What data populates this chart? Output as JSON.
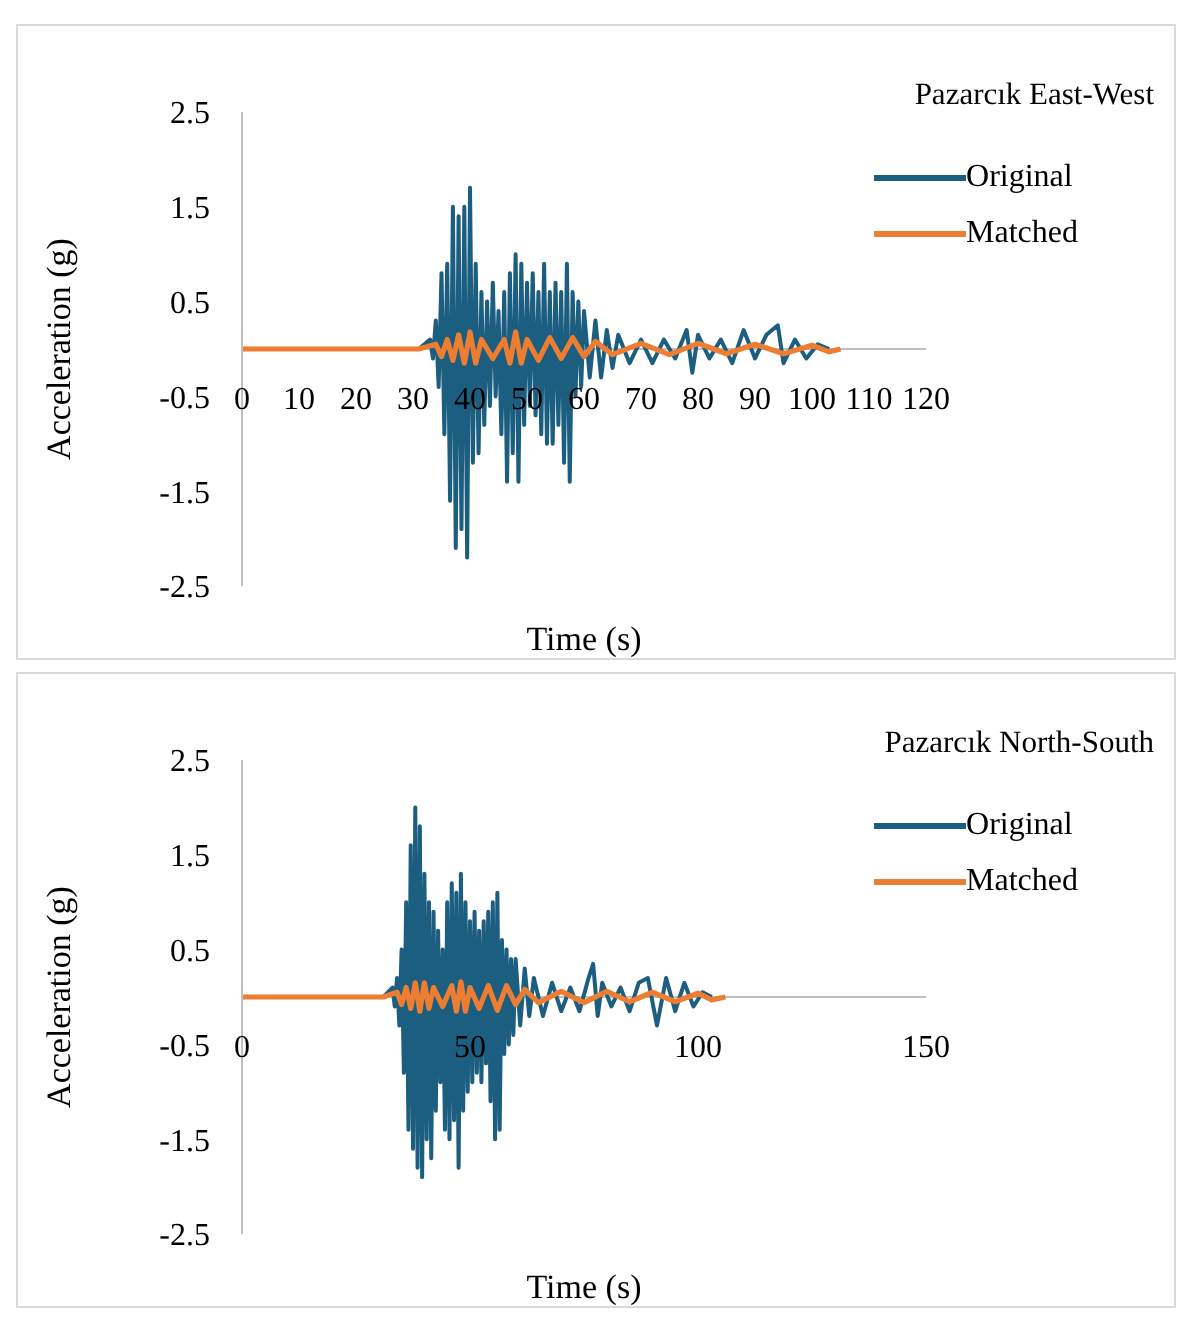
{
  "chart_data": [
    {
      "type": "line",
      "title": "Pazarcık East-West",
      "xlabel": "Time (s)",
      "ylabel": "Acceleration (g)",
      "xlim": [
        0,
        120
      ],
      "xticks": [
        0,
        10,
        20,
        30,
        40,
        50,
        60,
        70,
        80,
        90,
        100,
        110,
        120
      ],
      "ylim": [
        -2.5,
        2.5
      ],
      "yticks": [
        -2.5,
        -1.5,
        -0.5,
        0.5,
        1.5,
        2.5
      ],
      "legend": "top right",
      "marker": "none",
      "series": [
        {
          "name": "Original",
          "color": "#1b5e80",
          "x": [
            0,
            31,
            33,
            33.5,
            34,
            34.5,
            35,
            35.5,
            36,
            36.5,
            37,
            37.5,
            38,
            38.5,
            39,
            39.5,
            40,
            40.5,
            41,
            41.5,
            42,
            42.5,
            43,
            43.5,
            44,
            44.5,
            45,
            45.5,
            46,
            46.5,
            47,
            47.5,
            48,
            48.5,
            49,
            49.5,
            50,
            50.5,
            51,
            51.5,
            52,
            52.5,
            53,
            53.5,
            54,
            54.5,
            55,
            55.5,
            56,
            56.5,
            57,
            57.5,
            58,
            58.5,
            59,
            59.5,
            60,
            61,
            62,
            63,
            64,
            65,
            66,
            68,
            70,
            72,
            74,
            76,
            78,
            79,
            80,
            82,
            84,
            86,
            88,
            90,
            92,
            94,
            95,
            97,
            99,
            101,
            103
          ],
          "values": [
            0,
            0,
            0.1,
            -0.1,
            0.3,
            -0.4,
            0.8,
            -0.9,
            0.9,
            -1.6,
            1.5,
            -2.1,
            1.4,
            -1.9,
            1.5,
            -2.2,
            1.7,
            -1.2,
            0.9,
            -1.1,
            0.6,
            -0.8,
            0.5,
            -0.6,
            0.7,
            -0.5,
            0.4,
            -0.9,
            0.6,
            -1.4,
            0.8,
            -1.1,
            1.0,
            -1.4,
            0.9,
            -0.8,
            0.7,
            -0.6,
            0.8,
            -0.7,
            0.6,
            -0.9,
            0.9,
            -1.0,
            0.6,
            -1.0,
            0.7,
            -0.8,
            0.6,
            -1.2,
            0.9,
            -1.4,
            0.6,
            -0.5,
            0.5,
            -0.4,
            0.4,
            -0.3,
            0.3,
            -0.3,
            0.2,
            -0.2,
            0.15,
            -0.15,
            0.1,
            -0.15,
            0.1,
            -0.1,
            0.2,
            -0.25,
            0.15,
            -0.1,
            0.1,
            -0.15,
            0.2,
            -0.1,
            0.15,
            0.25,
            -0.15,
            0.1,
            -0.1,
            0.05,
            0
          ]
        },
        {
          "name": "Matched",
          "color": "#ed7d31",
          "x": [
            0,
            31,
            34,
            35,
            36,
            37,
            38,
            39,
            40,
            41,
            42,
            44,
            46,
            47,
            48,
            49,
            50,
            52,
            54,
            56,
            58,
            60,
            62,
            65,
            70,
            75,
            80,
            85,
            90,
            95,
            100,
            103,
            105
          ],
          "values": [
            0,
            0,
            0.05,
            -0.08,
            0.1,
            -0.12,
            0.15,
            -0.15,
            0.18,
            -0.15,
            0.1,
            -0.1,
            0.1,
            -0.15,
            0.18,
            -0.15,
            0.1,
            -0.12,
            0.12,
            -0.1,
            0.12,
            -0.08,
            0.08,
            -0.06,
            0.06,
            -0.06,
            0.06,
            -0.05,
            0.05,
            -0.05,
            0.04,
            -0.03,
            0
          ]
        }
      ]
    },
    {
      "type": "line",
      "title": "Pazarcık North-South",
      "xlabel": "Time (s)",
      "ylabel": "Acceleration (g)",
      "xlim": [
        0,
        150
      ],
      "xticks": [
        0,
        50,
        100,
        150
      ],
      "ylim": [
        -2.5,
        2.5
      ],
      "yticks": [
        -2.5,
        -1.5,
        -0.5,
        0.5,
        1.5,
        2.5
      ],
      "legend": "top right",
      "marker": "none",
      "series": [
        {
          "name": "Original",
          "color": "#1b5e80",
          "x": [
            0,
            31,
            33,
            33.5,
            34,
            34.5,
            35,
            35.5,
            36,
            36.5,
            37,
            37.5,
            38,
            38.5,
            39,
            39.5,
            40,
            40.5,
            41,
            41.5,
            42,
            42.5,
            43,
            43.5,
            44,
            44.5,
            45,
            45.5,
            46,
            46.5,
            47,
            47.5,
            48,
            48.5,
            49,
            49.5,
            50,
            50.5,
            51,
            51.5,
            52,
            52.5,
            53,
            53.5,
            54,
            54.5,
            55,
            55.5,
            56,
            56.5,
            57,
            57.5,
            58,
            58.5,
            59,
            59.5,
            60,
            61,
            62,
            63,
            64,
            66,
            68,
            70,
            72,
            74,
            76,
            77,
            78,
            79,
            81,
            83,
            85,
            87,
            89,
            91,
            93,
            95,
            97,
            99,
            101,
            103
          ],
          "values": [
            0,
            0,
            0.1,
            -0.1,
            0.2,
            -0.3,
            0.5,
            -0.8,
            1.0,
            -1.4,
            1.6,
            -1.6,
            2.0,
            -1.8,
            1.8,
            -1.9,
            1.3,
            -1.5,
            1.0,
            -1.7,
            0.9,
            -1.2,
            0.7,
            -0.9,
            0.5,
            -1.4,
            1.0,
            -1.5,
            1.2,
            -1.3,
            1.1,
            -1.8,
            1.3,
            -1.2,
            1.0,
            -1.0,
            0.8,
            -0.9,
            0.9,
            -0.8,
            0.7,
            -0.9,
            0.8,
            -0.7,
            0.9,
            -1.1,
            1.0,
            -1.5,
            1.1,
            -1.4,
            0.6,
            -0.6,
            0.5,
            -0.5,
            0.4,
            -0.4,
            0.4,
            -0.3,
            0.3,
            -0.2,
            0.2,
            -0.2,
            0.15,
            -0.15,
            0.1,
            -0.15,
            0.2,
            0.35,
            -0.2,
            0.15,
            -0.1,
            0.1,
            -0.15,
            0.15,
            0.2,
            -0.3,
            0.2,
            -0.15,
            0.15,
            -0.1,
            0.05,
            0
          ]
        },
        {
          "name": "Matched",
          "color": "#ed7d31",
          "x": [
            0,
            31,
            34,
            35,
            36,
            37,
            38,
            39,
            40,
            41,
            42,
            44,
            46,
            47,
            48,
            49,
            50,
            52,
            54,
            56,
            58,
            60,
            62,
            65,
            70,
            75,
            80,
            85,
            90,
            95,
            100,
            103,
            106
          ],
          "values": [
            0,
            0,
            0.05,
            -0.08,
            0.1,
            -0.12,
            0.15,
            -0.15,
            0.15,
            -0.12,
            0.1,
            -0.1,
            0.12,
            -0.15,
            0.16,
            -0.15,
            0.1,
            -0.12,
            0.12,
            -0.14,
            0.12,
            -0.08,
            0.08,
            -0.06,
            0.06,
            -0.06,
            0.06,
            -0.05,
            0.05,
            -0.05,
            0.04,
            -0.03,
            0
          ]
        }
      ]
    }
  ]
}
